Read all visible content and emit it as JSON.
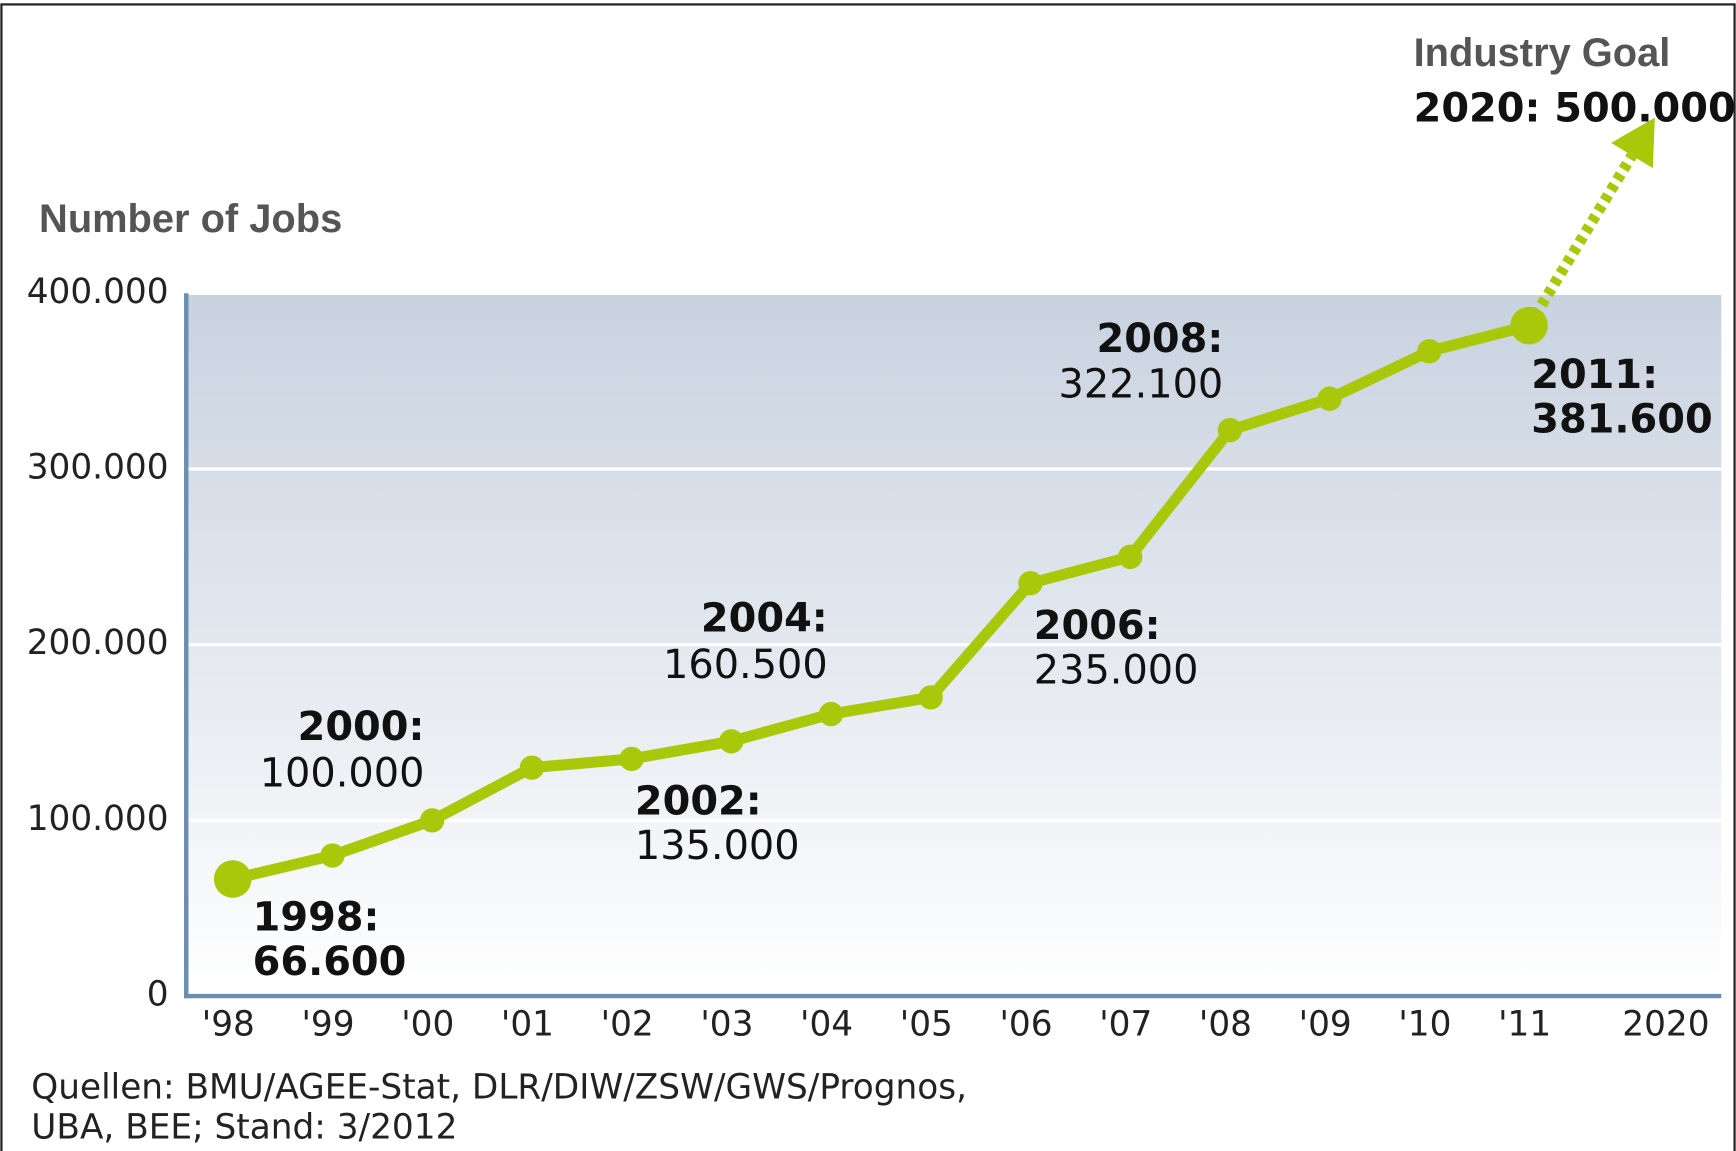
{
  "chart_data": {
    "type": "line",
    "title": "Number of Jobs",
    "annotation": "Industry Goal",
    "categories": [
      "'98",
      "'99",
      "'00",
      "'01",
      "'02",
      "'03",
      "'04",
      "'05",
      "'06",
      "'07",
      "'08",
      "'09",
      "'10",
      "'11",
      "2020"
    ],
    "values": [
      66600,
      80000,
      100000,
      130000,
      135000,
      145000,
      160500,
      170000,
      235000,
      250000,
      322100,
      340000,
      367000,
      381600,
      500000
    ],
    "point_titles": [
      "1998:",
      null,
      "2000:",
      null,
      "2002:",
      null,
      "2004:",
      null,
      "2006:",
      null,
      "2008:",
      null,
      null,
      "2011:",
      "2020:"
    ],
    "value_labels": [
      "66.600",
      null,
      "100.000",
      null,
      "135.000",
      null,
      "160.500",
      null,
      "235.000",
      null,
      "322.100",
      null,
      null,
      "381.600",
      "500.000"
    ],
    "color": "#a9c80a",
    "ylim": [
      0,
      400000
    ],
    "yticks": [
      0,
      {
        "value": 100000,
        "label": "100.000"
      },
      {
        "value": 200000,
        "label": "200.000"
      },
      {
        "value": 300000,
        "label": "300.000"
      },
      {
        "value": 400000,
        "label": "400.000"
      }
    ],
    "grid": true,
    "source": [
      "Quellen: BMU/AGEE-Stat, DLR/DIW/ZSW/GWS/Prognos,",
      "UBA, BEE; Stand: 3/2012"
    ]
  }
}
